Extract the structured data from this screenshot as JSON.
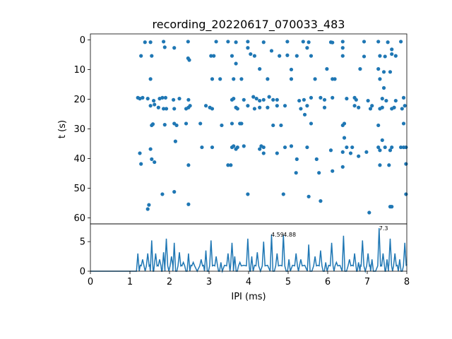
{
  "chart_data": {
    "type": "scatter",
    "title": "recording_20220617_070033_483",
    "color": "#1f77b4",
    "raster": {
      "ylabel": "t (s)",
      "xlim": [
        0,
        8
      ],
      "ylim": [
        62,
        -2
      ],
      "yticks": [
        "0",
        "10",
        "20",
        "30",
        "40",
        "50",
        "60"
      ],
      "points": [
        [
          1.38,
          0.8
        ],
        [
          1.52,
          0.8
        ],
        [
          1.85,
          0.6
        ],
        [
          2.47,
          0.6
        ],
        [
          3.18,
          0.6
        ],
        [
          3.48,
          0.6
        ],
        [
          3.68,
          0.8
        ],
        [
          3.98,
          0.6
        ],
        [
          4.38,
          0.8
        ],
        [
          4.98,
          0.6
        ],
        [
          5.38,
          0.6
        ],
        [
          5.52,
          0.8
        ],
        [
          6.08,
          0.8
        ],
        [
          6.12,
          0.9
        ],
        [
          6.38,
          0.6
        ],
        [
          6.92,
          0.6
        ],
        [
          7.28,
          0.6
        ],
        [
          7.52,
          0.8
        ],
        [
          7.85,
          0.6
        ],
        [
          1.88,
          2.5
        ],
        [
          2.12,
          2.7
        ],
        [
          3.98,
          2.7
        ],
        [
          4.58,
          3.7
        ],
        [
          5.48,
          2.7
        ],
        [
          6.38,
          2.7
        ],
        [
          7.62,
          3.2
        ],
        [
          1.28,
          5.4
        ],
        [
          1.55,
          5.4
        ],
        [
          2.47,
          6.2
        ],
        [
          3.05,
          5.4
        ],
        [
          3.12,
          5.4
        ],
        [
          3.58,
          5.4
        ],
        [
          4.05,
          4.8
        ],
        [
          4.15,
          5.4
        ],
        [
          4.78,
          5.4
        ],
        [
          4.98,
          5.2
        ],
        [
          5.22,
          5.4
        ],
        [
          5.58,
          5.4
        ],
        [
          6.38,
          5.4
        ],
        [
          6.92,
          5.6
        ],
        [
          7.32,
          5.4
        ],
        [
          7.45,
          5.6
        ],
        [
          7.62,
          4.8
        ],
        [
          7.72,
          5.4
        ],
        [
          2.5,
          6.8
        ],
        [
          3.68,
          8
        ],
        [
          4.28,
          9.8
        ],
        [
          5.08,
          10
        ],
        [
          5.98,
          9.8
        ],
        [
          6.82,
          9.8
        ],
        [
          7.28,
          9.8
        ],
        [
          7.42,
          10.8
        ],
        [
          7.58,
          10.8
        ],
        [
          1.52,
          13.2
        ],
        [
          3.08,
          13.2
        ],
        [
          3.28,
          13.2
        ],
        [
          3.62,
          13.2
        ],
        [
          3.82,
          13.2
        ],
        [
          4.48,
          13.2
        ],
        [
          5.08,
          13.2
        ],
        [
          5.68,
          13.2
        ],
        [
          6.12,
          13.2
        ],
        [
          6.18,
          13.2
        ],
        [
          7.32,
          13.2
        ],
        [
          7.42,
          16.2
        ],
        [
          1.2,
          19.5
        ],
        [
          1.25,
          19.8
        ],
        [
          1.32,
          19.5
        ],
        [
          1.45,
          19.8
        ],
        [
          1.6,
          20.5
        ],
        [
          1.75,
          19.8
        ],
        [
          1.82,
          19.5
        ],
        [
          1.9,
          19.5
        ],
        [
          2.1,
          20.2
        ],
        [
          2.25,
          19.8
        ],
        [
          2.48,
          20.2
        ],
        [
          3.58,
          20.2
        ],
        [
          3.62,
          19.8
        ],
        [
          3.88,
          20.2
        ],
        [
          4.12,
          19.2
        ],
        [
          4.2,
          19.8
        ],
        [
          4.28,
          20.5
        ],
        [
          4.38,
          20.2
        ],
        [
          4.52,
          19.2
        ],
        [
          4.62,
          20.2
        ],
        [
          4.72,
          20.2
        ],
        [
          5.28,
          20.5
        ],
        [
          5.4,
          20.2
        ],
        [
          5.58,
          19.5
        ],
        [
          5.82,
          19.5
        ],
        [
          5.92,
          20.2
        ],
        [
          6.12,
          19.5
        ],
        [
          6.48,
          19.8
        ],
        [
          6.68,
          19.5
        ],
        [
          6.72,
          20.2
        ],
        [
          7.02,
          20.5
        ],
        [
          7.38,
          19.8
        ],
        [
          7.48,
          20.5
        ],
        [
          7.72,
          20.5
        ],
        [
          7.92,
          19.5
        ],
        [
          1.52,
          22.2
        ],
        [
          1.62,
          21.8
        ],
        [
          1.72,
          22.8
        ],
        [
          1.85,
          23.2
        ],
        [
          1.92,
          23.2
        ],
        [
          2.12,
          23.2
        ],
        [
          2.42,
          23.2
        ],
        [
          2.48,
          22.8
        ],
        [
          2.52,
          22.2
        ],
        [
          2.92,
          22.2
        ],
        [
          3.02,
          22.8
        ],
        [
          3.08,
          23.2
        ],
        [
          3.68,
          22.8
        ],
        [
          3.72,
          23.2
        ],
        [
          3.98,
          22.2
        ],
        [
          4.15,
          23.2
        ],
        [
          4.28,
          22.8
        ],
        [
          4.48,
          22.8
        ],
        [
          4.72,
          22.2
        ],
        [
          4.92,
          22.2
        ],
        [
          5.32,
          23.2
        ],
        [
          5.48,
          22.2
        ],
        [
          5.92,
          22.8
        ],
        [
          6.68,
          22.2
        ],
        [
          6.78,
          22.8
        ],
        [
          7.08,
          23.2
        ],
        [
          7.12,
          22.2
        ],
        [
          7.32,
          23.2
        ],
        [
          7.38,
          22.8
        ],
        [
          7.62,
          23.2
        ],
        [
          7.68,
          22.8
        ],
        [
          7.88,
          23.2
        ],
        [
          7.95,
          22.2
        ],
        [
          5.42,
          25.2
        ],
        [
          1.55,
          28.8
        ],
        [
          1.58,
          28.4
        ],
        [
          1.88,
          28.6
        ],
        [
          2.12,
          28.2
        ],
        [
          2.18,
          28.8
        ],
        [
          2.42,
          28.2
        ],
        [
          2.78,
          28.2
        ],
        [
          3.32,
          28.8
        ],
        [
          3.58,
          28.2
        ],
        [
          3.78,
          28.2
        ],
        [
          3.82,
          28.2
        ],
        [
          4.62,
          28.8
        ],
        [
          4.82,
          28.8
        ],
        [
          5.58,
          28.2
        ],
        [
          6.38,
          28.8
        ],
        [
          6.42,
          28.2
        ],
        [
          7.28,
          28.8
        ],
        [
          7.92,
          28.2
        ],
        [
          2.15,
          34.2
        ],
        [
          6.42,
          33
        ],
        [
          7.38,
          33.8
        ],
        [
          2.82,
          36.2
        ],
        [
          3.08,
          36.2
        ],
        [
          3.58,
          36.2
        ],
        [
          3.62,
          35.8
        ],
        [
          3.68,
          36.8
        ],
        [
          3.72,
          36.2
        ],
        [
          3.88,
          35.8
        ],
        [
          4.28,
          36.8
        ],
        [
          4.32,
          35.8
        ],
        [
          4.38,
          36.2
        ],
        [
          4.92,
          36.2
        ],
        [
          5.08,
          35.8
        ],
        [
          5.48,
          36.2
        ],
        [
          6.08,
          37.2
        ],
        [
          6.38,
          37.8
        ],
        [
          6.48,
          36.2
        ],
        [
          6.62,
          36.2
        ],
        [
          6.98,
          37.8
        ],
        [
          7.28,
          36.2
        ],
        [
          7.32,
          37.2
        ],
        [
          7.45,
          36.2
        ],
        [
          7.58,
          37.2
        ],
        [
          7.62,
          36.2
        ],
        [
          7.85,
          36.2
        ],
        [
          7.92,
          36.2
        ],
        [
          7.98,
          36.2
        ],
        [
          1.25,
          38.2
        ],
        [
          1.28,
          41.8
        ],
        [
          1.55,
          40.2
        ],
        [
          1.62,
          41.2
        ],
        [
          1.52,
          36.8
        ],
        [
          2.48,
          42.2
        ],
        [
          3.48,
          42.2
        ],
        [
          3.55,
          42.2
        ],
        [
          4.38,
          38.2
        ],
        [
          4.72,
          38.2
        ],
        [
          5.22,
          40.2
        ],
        [
          5.72,
          40.2
        ],
        [
          6.38,
          42.8
        ],
        [
          6.58,
          38.2
        ],
        [
          6.78,
          39.2
        ],
        [
          7.32,
          42.2
        ],
        [
          7.55,
          42.2
        ],
        [
          7.98,
          41.8
        ],
        [
          5.2,
          44.8
        ],
        [
          5.78,
          44.8
        ],
        [
          6.12,
          44.2
        ],
        [
          2.12,
          51.2
        ],
        [
          1.82,
          52
        ],
        [
          3.98,
          52
        ],
        [
          4.88,
          52
        ],
        [
          5.52,
          52.8
        ],
        [
          5.82,
          54.3
        ],
        [
          7.98,
          52
        ],
        [
          1.48,
          55.6
        ],
        [
          1.45,
          57
        ],
        [
          2.48,
          55.4
        ],
        [
          7.58,
          56.2
        ],
        [
          7.62,
          56.2
        ],
        [
          7.05,
          58.2
        ]
      ]
    },
    "histogram": {
      "xlabel": "IPI (ms)",
      "xlim": [
        0,
        8
      ],
      "ylim": [
        0,
        8
      ],
      "xticks": [
        "0",
        "1",
        "2",
        "3",
        "4",
        "5",
        "6",
        "7",
        "8"
      ],
      "yticks": [
        "0",
        "5"
      ],
      "peaks": [
        [
          1.2,
          3
        ],
        [
          1.32,
          2
        ],
        [
          1.45,
          3
        ],
        [
          1.55,
          5.2
        ],
        [
          1.65,
          3
        ],
        [
          1.75,
          2
        ],
        [
          1.85,
          3.2
        ],
        [
          1.92,
          5.5
        ],
        [
          2.05,
          2.5
        ],
        [
          2.12,
          4.8
        ],
        [
          2.25,
          3.2
        ],
        [
          2.35,
          1.5
        ],
        [
          2.48,
          3
        ],
        [
          2.6,
          1.5
        ],
        [
          2.8,
          2
        ],
        [
          2.92,
          3.5
        ],
        [
          3.05,
          5.2
        ],
        [
          3.18,
          2.5
        ],
        [
          3.3,
          1.5
        ],
        [
          3.48,
          3
        ],
        [
          3.58,
          4.8
        ],
        [
          3.65,
          2.5
        ],
        [
          3.78,
          1.5
        ],
        [
          3.98,
          5.5
        ],
        [
          4.08,
          2.5
        ],
        [
          4.22,
          3.2
        ],
        [
          4.38,
          5
        ],
        [
          4.58,
          6.2
        ],
        [
          4.72,
          3
        ],
        [
          4.88,
          6.1
        ],
        [
          5.02,
          2
        ],
        [
          5.2,
          3
        ],
        [
          5.32,
          2
        ],
        [
          5.52,
          4.5
        ],
        [
          5.68,
          2.5
        ],
        [
          5.82,
          3.5
        ],
        [
          5.95,
          1.5
        ],
        [
          6.1,
          4.8
        ],
        [
          6.22,
          1.5
        ],
        [
          6.4,
          6
        ],
        [
          6.55,
          2
        ],
        [
          6.68,
          3
        ],
        [
          6.78,
          1.5
        ],
        [
          6.88,
          5.2
        ],
        [
          7.02,
          3
        ],
        [
          7.12,
          2
        ],
        [
          7.3,
          7.3
        ],
        [
          7.4,
          3
        ],
        [
          7.5,
          2
        ],
        [
          7.58,
          5.5
        ],
        [
          7.7,
          3
        ],
        [
          7.82,
          2
        ],
        [
          7.95,
          4.8
        ]
      ],
      "annotations": [
        {
          "text": "4.59",
          "x": 4.59,
          "y": 6.2
        },
        {
          "text": "4.88",
          "x": 4.88,
          "y": 6.2
        },
        {
          "text": "7.3",
          "x": 7.3,
          "y": 7.3
        }
      ]
    }
  }
}
